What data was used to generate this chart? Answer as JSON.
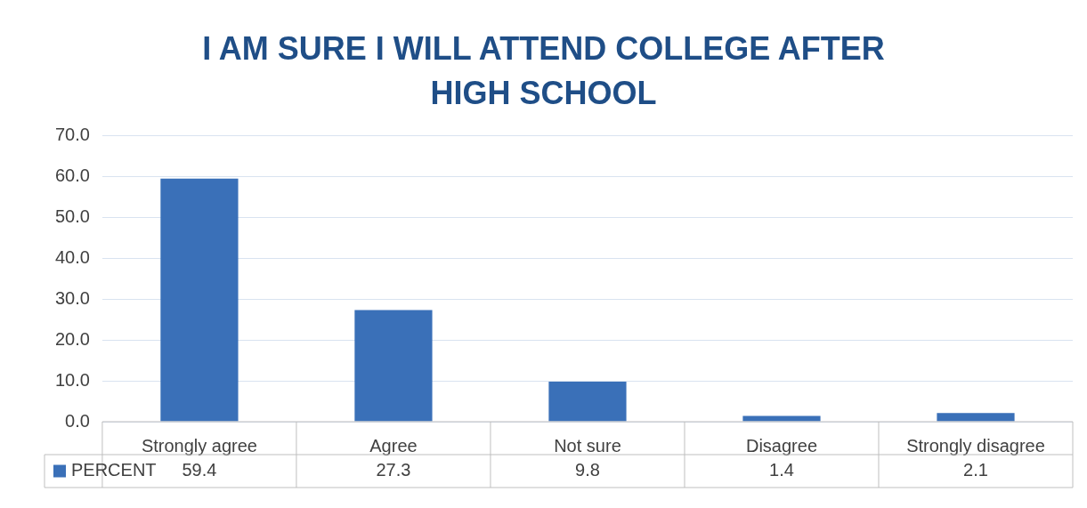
{
  "chart_data": {
    "type": "bar",
    "title": "I AM SURE I WILL ATTEND COLLEGE AFTER HIGH SCHOOL",
    "categories": [
      "Strongly agree",
      "Agree",
      "Not sure",
      "Disagree",
      "Strongly disagree"
    ],
    "series": [
      {
        "name": "PERCENT",
        "color": "#3a70b8",
        "values": [
          59.4,
          27.3,
          9.8,
          1.4,
          2.1
        ]
      }
    ],
    "ylim": [
      0,
      70
    ],
    "yticks": [
      {
        "value": 0,
        "label": "0.0"
      },
      {
        "value": 10,
        "label": "10.0"
      },
      {
        "value": 20,
        "label": "20.0"
      },
      {
        "value": 30,
        "label": "30.0"
      },
      {
        "value": 40,
        "label": "40.0"
      },
      {
        "value": 50,
        "label": "50.0"
      },
      {
        "value": 60,
        "label": "60.0"
      },
      {
        "value": 70,
        "label": "70.0"
      }
    ],
    "grid": "y",
    "legend": "bottom",
    "data_labels": true
  }
}
